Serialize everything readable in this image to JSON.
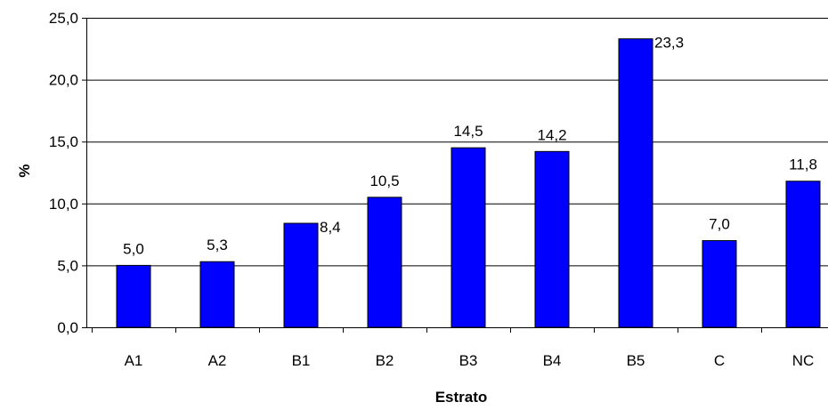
{
  "chart_data": {
    "type": "bar",
    "title": "",
    "xlabel": "Estrato",
    "ylabel": "%",
    "categories": [
      "A1",
      "A2",
      "B1",
      "B2",
      "B3",
      "B4",
      "B5",
      "C",
      "NC"
    ],
    "values": [
      5.0,
      5.3,
      8.4,
      10.5,
      14.5,
      14.2,
      23.3,
      7.0,
      11.8
    ],
    "data_labels": [
      "5,0",
      "5,3",
      "8,4",
      "10,5",
      "14,5",
      "14,2",
      "23,3",
      "7,0",
      "11,8"
    ],
    "ylim": [
      0,
      25
    ],
    "yticks": [
      0,
      5,
      10,
      15,
      20,
      25
    ],
    "ytick_labels": [
      "0,0",
      "5,0",
      "10,0",
      "15,0",
      "20,0",
      "25,0"
    ],
    "grid": "horizontal",
    "legend": "none",
    "colors": {
      "bar": "#0000ff",
      "bar_edge": "#000000",
      "grid": "#000000",
      "background": "#ffffff"
    }
  }
}
